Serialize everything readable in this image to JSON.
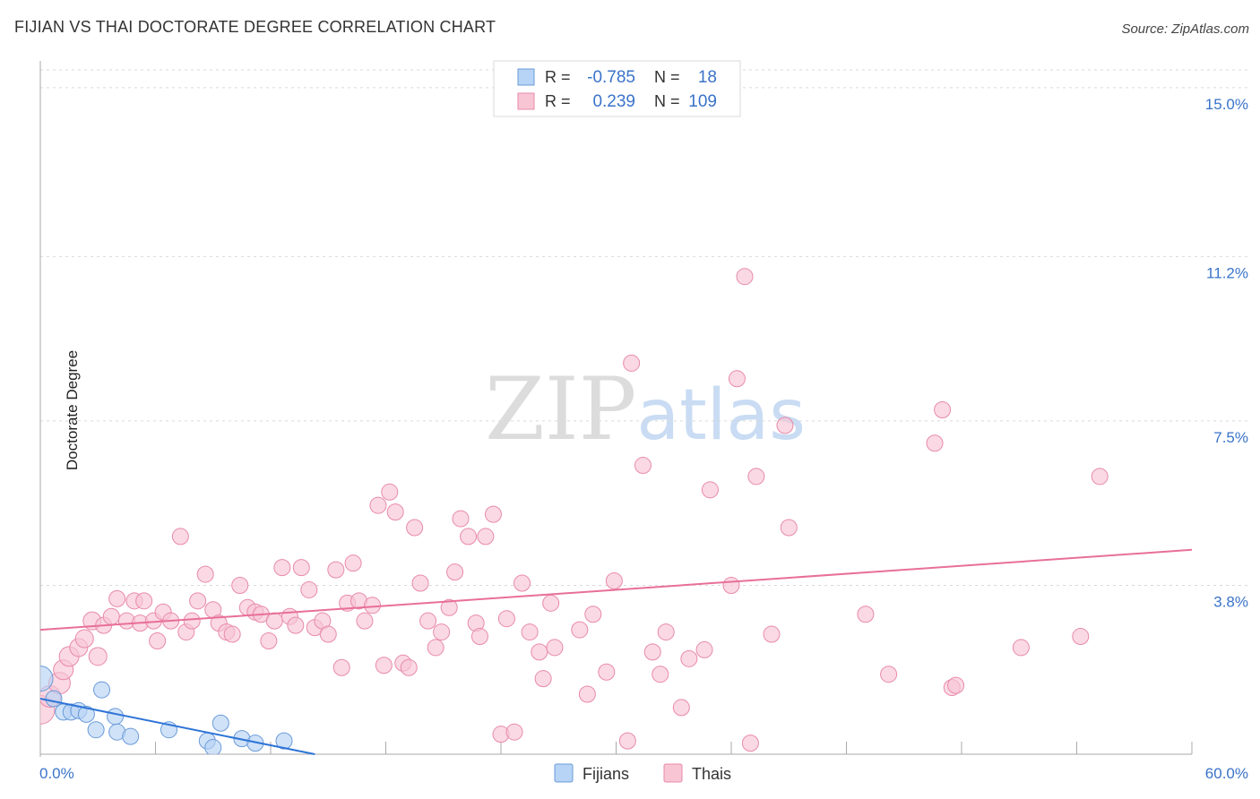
{
  "header": {
    "title": "FIJIAN VS THAI DOCTORATE DEGREE CORRELATION CHART",
    "source": "Source: ZipAtlas.com"
  },
  "watermark": {
    "part1": "ZIP",
    "part2": "atlas"
  },
  "legend_box": {
    "rows": [
      {
        "r_label": "R =",
        "r_value": "-0.785",
        "n_label": "N =",
        "n_value": "18",
        "fill": "#b7d3f5",
        "stroke": "#6a9bd8"
      },
      {
        "r_label": "R =",
        "r_value": "0.239",
        "n_label": "N =",
        "n_value": "109",
        "fill": "#f8c5d5",
        "stroke": "#e88aa9"
      }
    ]
  },
  "colors": {
    "blue_fill": "#b7d3f5",
    "blue_stroke": "#6a9bd8",
    "blue_line": "#2e74d6",
    "pink_fill": "#f8c5d5",
    "pink_stroke": "#e88aa9",
    "pink_line": "#e86f99",
    "value_text": "#3a73c9"
  },
  "chart_data": {
    "type": "scatter",
    "title": "FIJIAN VS THAI DOCTORATE DEGREE CORRELATION CHART",
    "xlabel": "",
    "ylabel": "Doctorate Degree",
    "xlim": [
      0,
      60
    ],
    "ylim": [
      0,
      15.4
    ],
    "x_tick_labels": [
      "0.0%",
      "60.0%"
    ],
    "y_ticks": [
      3.8,
      7.5,
      11.2,
      15.0
    ],
    "y_tick_labels": [
      "3.8%",
      "7.5%",
      "11.2%",
      "15.0%"
    ],
    "grid": true,
    "legend_position": "bottom-center",
    "series": [
      {
        "name": "Fijians",
        "r": -0.785,
        "n": 18,
        "trend": {
          "x0": 0,
          "y0": 1.25,
          "x1": 14.3,
          "y1": 0.0
        },
        "points": [
          [
            0,
            1.7,
            14
          ],
          [
            0.7,
            1.25,
            9
          ],
          [
            1.2,
            0.95,
            9
          ],
          [
            1.6,
            0.95,
            9
          ],
          [
            2.0,
            0.98,
            9
          ],
          [
            2.4,
            0.9,
            9
          ],
          [
            3.2,
            1.45,
            9
          ],
          [
            2.9,
            0.55,
            9
          ],
          [
            3.9,
            0.85,
            9
          ],
          [
            4.0,
            0.5,
            9
          ],
          [
            4.7,
            0.4,
            9
          ],
          [
            6.7,
            0.55,
            9
          ],
          [
            8.7,
            0.3,
            9
          ],
          [
            9.0,
            0.15,
            9
          ],
          [
            9.4,
            0.7,
            9
          ],
          [
            10.5,
            0.35,
            9
          ],
          [
            11.2,
            0.25,
            9
          ],
          [
            12.7,
            0.3,
            9
          ]
        ]
      },
      {
        "name": "Thais",
        "r": 0.239,
        "n": 109,
        "trend": {
          "x0": 0,
          "y0": 2.8,
          "x1": 60,
          "y1": 4.6
        },
        "points": [
          [
            0,
            1.0,
            16
          ],
          [
            0.5,
            1.3,
            12
          ],
          [
            1.0,
            1.6,
            12
          ],
          [
            1.2,
            1.9,
            11
          ],
          [
            1.5,
            2.2,
            11
          ],
          [
            2.0,
            2.4,
            10
          ],
          [
            2.3,
            2.6,
            10
          ],
          [
            2.7,
            3.0,
            10
          ],
          [
            3.0,
            2.2,
            10
          ],
          [
            3.3,
            2.9,
            9
          ],
          [
            3.7,
            3.1,
            9
          ],
          [
            4.0,
            3.5,
            9
          ],
          [
            4.5,
            3.0,
            9
          ],
          [
            4.9,
            3.45,
            9
          ],
          [
            5.2,
            2.95,
            9
          ],
          [
            5.4,
            3.45,
            9
          ],
          [
            5.9,
            3.0,
            9
          ],
          [
            6.1,
            2.55,
            9
          ],
          [
            6.4,
            3.2,
            9
          ],
          [
            6.8,
            3.0,
            9
          ],
          [
            7.3,
            4.9,
            9
          ],
          [
            7.6,
            2.75,
            9
          ],
          [
            7.9,
            3.0,
            9
          ],
          [
            8.2,
            3.45,
            9
          ],
          [
            8.6,
            4.05,
            9
          ],
          [
            9.0,
            3.25,
            9
          ],
          [
            9.3,
            2.95,
            9
          ],
          [
            9.7,
            2.75,
            9
          ],
          [
            10.0,
            2.7,
            9
          ],
          [
            10.4,
            3.8,
            9
          ],
          [
            10.8,
            3.3,
            9
          ],
          [
            11.2,
            3.2,
            9
          ],
          [
            11.5,
            3.15,
            9
          ],
          [
            11.9,
            2.55,
            9
          ],
          [
            12.2,
            3.0,
            9
          ],
          [
            12.6,
            4.2,
            9
          ],
          [
            13.0,
            3.1,
            9
          ],
          [
            13.3,
            2.9,
            9
          ],
          [
            13.6,
            4.2,
            9
          ],
          [
            14.0,
            3.7,
            9
          ],
          [
            14.3,
            2.85,
            9
          ],
          [
            14.7,
            3.0,
            9
          ],
          [
            15.0,
            2.7,
            9
          ],
          [
            15.4,
            4.15,
            9
          ],
          [
            15.7,
            1.95,
            9
          ],
          [
            16.0,
            3.4,
            9
          ],
          [
            16.3,
            4.3,
            9
          ],
          [
            16.6,
            3.45,
            9
          ],
          [
            16.9,
            3.0,
            9
          ],
          [
            17.3,
            3.35,
            9
          ],
          [
            17.6,
            5.6,
            9
          ],
          [
            17.9,
            2.0,
            9
          ],
          [
            18.2,
            5.9,
            9
          ],
          [
            18.5,
            5.45,
            9
          ],
          [
            18.9,
            2.05,
            9
          ],
          [
            19.2,
            1.95,
            9
          ],
          [
            19.5,
            5.1,
            9
          ],
          [
            19.8,
            3.85,
            9
          ],
          [
            20.2,
            3.0,
            9
          ],
          [
            20.6,
            2.4,
            9
          ],
          [
            20.9,
            2.75,
            9
          ],
          [
            21.3,
            3.3,
            9
          ],
          [
            21.6,
            4.1,
            9
          ],
          [
            21.9,
            5.3,
            9
          ],
          [
            22.3,
            4.9,
            9
          ],
          [
            22.7,
            2.95,
            9
          ],
          [
            22.9,
            2.65,
            9
          ],
          [
            23.2,
            4.9,
            9
          ],
          [
            23.6,
            5.4,
            9
          ],
          [
            24.0,
            0.45,
            9
          ],
          [
            24.3,
            3.05,
            9
          ],
          [
            24.7,
            0.5,
            9
          ],
          [
            25.1,
            3.85,
            9
          ],
          [
            25.5,
            2.75,
            9
          ],
          [
            26.0,
            2.3,
            9
          ],
          [
            26.2,
            1.7,
            9
          ],
          [
            26.6,
            3.4,
            9
          ],
          [
            26.8,
            2.4,
            9
          ],
          [
            28.1,
            2.8,
            9
          ],
          [
            28.5,
            1.35,
            9
          ],
          [
            28.8,
            3.15,
            9
          ],
          [
            29.5,
            1.85,
            9
          ],
          [
            29.9,
            3.9,
            9
          ],
          [
            30.6,
            0.3,
            9
          ],
          [
            30.8,
            8.8,
            9
          ],
          [
            31.4,
            6.5,
            9
          ],
          [
            31.9,
            2.3,
            9
          ],
          [
            32.3,
            1.8,
            9
          ],
          [
            32.6,
            2.75,
            9
          ],
          [
            33.4,
            1.05,
            9
          ],
          [
            33.8,
            2.15,
            9
          ],
          [
            34.6,
            2.35,
            9
          ],
          [
            34.9,
            5.95,
            9
          ],
          [
            36.0,
            3.8,
            9
          ],
          [
            36.3,
            8.45,
            9
          ],
          [
            36.7,
            10.75,
            9
          ],
          [
            37.0,
            0.25,
            9
          ],
          [
            37.3,
            6.25,
            9
          ],
          [
            38.1,
            2.7,
            9
          ],
          [
            38.8,
            7.4,
            9
          ],
          [
            39.0,
            5.1,
            9
          ],
          [
            43.0,
            3.15,
            9
          ],
          [
            44.2,
            1.8,
            9
          ],
          [
            46.6,
            7.0,
            9
          ],
          [
            47.0,
            7.75,
            9
          ],
          [
            47.5,
            1.5,
            9
          ],
          [
            47.7,
            1.55,
            9
          ],
          [
            51.1,
            2.4,
            9
          ],
          [
            54.2,
            2.65,
            9
          ],
          [
            55.2,
            6.25,
            9
          ]
        ]
      }
    ]
  }
}
